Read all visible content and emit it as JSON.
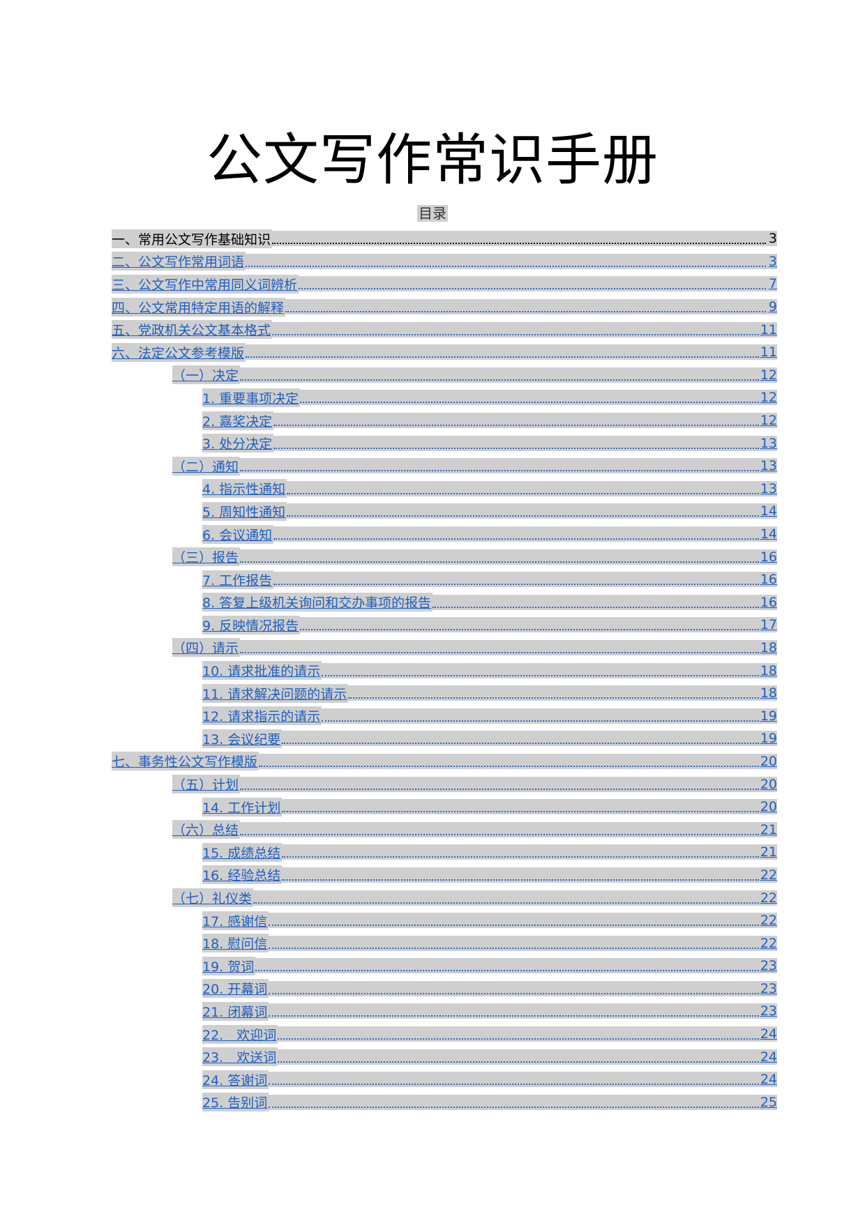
{
  "document": {
    "title": "公文写作常识手册",
    "toc_heading": "目录",
    "toc": [
      {
        "text": "一、常用公文写作基础知识",
        "page": "3"
      },
      {
        "text": "二、公文写作常用词语",
        "page": "3"
      },
      {
        "text": "三、公文写作中常用同义词辨析",
        "page": "7"
      },
      {
        "text": "四、公文常用特定用语的解释",
        "page": "9"
      },
      {
        "text": "五、党政机关公文基本格式",
        "page": "11"
      },
      {
        "text": "六、法定公文参考模版",
        "page": "11"
      },
      {
        "text": "（一）决定",
        "page": "12"
      },
      {
        "text": "1. 重要事项决定",
        "page": "12"
      },
      {
        "text": "2. 嘉奖决定",
        "page": "12"
      },
      {
        "text": "3. 处分决定",
        "page": "13"
      },
      {
        "text": "（二）通知",
        "page": "13"
      },
      {
        "text": "4. 指示性通知",
        "page": "13"
      },
      {
        "text": "5. 周知性通知",
        "page": "14"
      },
      {
        "text": "6. 会议通知",
        "page": "14"
      },
      {
        "text": "（三）报告",
        "page": "16"
      },
      {
        "text": "7. 工作报告",
        "page": "16"
      },
      {
        "text": "8. 答复上级机关询问和交办事项的报告",
        "page": "16"
      },
      {
        "text": "9. 反映情况报告",
        "page": "17"
      },
      {
        "text": "（四）请示",
        "page": "18"
      },
      {
        "text": "10. 请求批准的请示",
        "page": "18"
      },
      {
        "text": "11. 请求解决问题的请示",
        "page": "18"
      },
      {
        "text": "12. 请求指示的请示",
        "page": "19"
      },
      {
        "text": "13. 会议纪要",
        "page": "19"
      },
      {
        "text": "七、事务性公文写作模版",
        "page": "20"
      },
      {
        "text": "（五）计划",
        "page": "20"
      },
      {
        "text": "14. 工作计划",
        "page": "20"
      },
      {
        "text": "（六）总结",
        "page": "21"
      },
      {
        "text": "15. 成绩总结",
        "page": "21"
      },
      {
        "text": "16. 经验总结",
        "page": "22"
      },
      {
        "text": "（七）礼仪类",
        "page": "22"
      },
      {
        "text": "17. 感谢信",
        "page": "22"
      },
      {
        "text": "18. 慰问信",
        "page": "22"
      },
      {
        "text": "19. 贺词",
        "page": "23"
      },
      {
        "text": "20. 开幕词",
        "page": "23"
      },
      {
        "text": "21. 闭幕词",
        "page": "23"
      },
      {
        "text": "22.　欢迎词",
        "page": "24"
      },
      {
        "text": "23.　欢送词",
        "page": "24"
      },
      {
        "text": "24. 答谢词",
        "page": "24"
      },
      {
        "text": "25. 告别词",
        "page": "25"
      }
    ]
  },
  "colors": {
    "link": "#1f5fbf",
    "field_shading": "#cfcfcf"
  }
}
